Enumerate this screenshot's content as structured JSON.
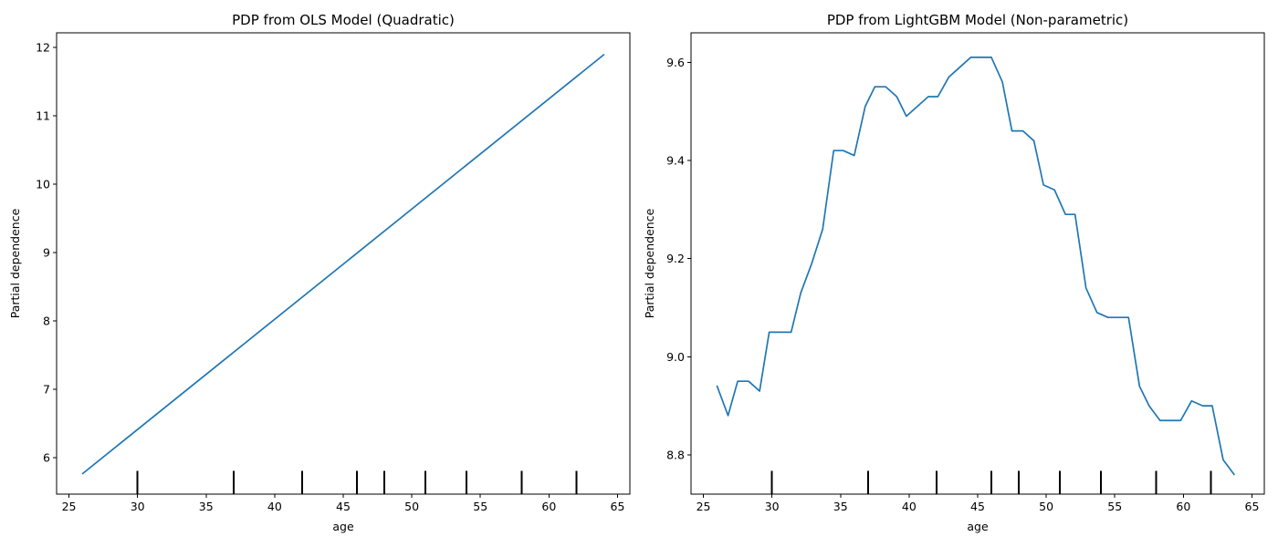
{
  "colors": {
    "line": "#1f77b4",
    "rug": "#000000",
    "axis": "#000000"
  },
  "chart_data": [
    {
      "type": "line",
      "title": "PDP from OLS Model (Quadratic)",
      "xlabel": "age",
      "ylabel": "Partial dependence",
      "xlim": [
        24.1,
        65.9
      ],
      "ylim": [
        5.47,
        12.21
      ],
      "xticks": [
        25,
        30,
        35,
        40,
        45,
        50,
        55,
        60,
        65
      ],
      "yticks": [
        6,
        7,
        8,
        9,
        10,
        11,
        12
      ],
      "xtick_labels": [
        "25",
        "30",
        "35",
        "40",
        "45",
        "50",
        "55",
        "60",
        "65"
      ],
      "ytick_labels": [
        "6",
        "7",
        "8",
        "9",
        "10",
        "11",
        "12"
      ],
      "grid": false,
      "rug_deciles": [
        30,
        37,
        42,
        46,
        48,
        51,
        54,
        58,
        62
      ],
      "series": [
        {
          "x": [
            26,
            64
          ],
          "y": [
            5.77,
            11.89
          ]
        }
      ]
    },
    {
      "type": "line",
      "title": "PDP from LightGBM Model (Non-parametric)",
      "xlabel": "age",
      "ylabel": "Partial dependence",
      "xlim": [
        24.1,
        65.9
      ],
      "ylim": [
        8.72,
        9.66
      ],
      "xticks": [
        25,
        30,
        35,
        40,
        45,
        50,
        55,
        60,
        65
      ],
      "yticks": [
        8.8,
        9.0,
        9.2,
        9.4,
        9.6
      ],
      "xtick_labels": [
        "25",
        "30",
        "35",
        "40",
        "45",
        "50",
        "55",
        "60",
        "65"
      ],
      "ytick_labels": [
        "8.8",
        "9.0",
        "9.2",
        "9.4",
        "9.6"
      ],
      "grid": false,
      "rug_deciles": [
        30,
        37,
        42,
        46,
        48,
        51,
        54,
        58,
        62
      ],
      "series": [
        {
          "x": [
            26.0,
            26.8,
            27.5,
            28.3,
            29.1,
            29.8,
            30.6,
            31.4,
            32.1,
            32.9,
            33.7,
            34.5,
            35.2,
            36.0,
            36.8,
            37.5,
            38.3,
            39.1,
            39.8,
            40.6,
            41.4,
            42.1,
            42.9,
            43.7,
            44.5,
            45.2,
            46.0,
            46.8,
            47.5,
            48.3,
            49.1,
            49.8,
            50.6,
            51.4,
            52.1,
            52.9,
            53.7,
            54.5,
            55.2,
            56.0,
            56.8,
            57.5,
            58.3,
            59.1,
            59.8,
            60.6,
            61.4,
            62.1,
            62.9,
            63.7
          ],
          "y": [
            8.94,
            8.88,
            8.95,
            8.95,
            8.93,
            9.05,
            9.05,
            9.05,
            9.13,
            9.19,
            9.26,
            9.42,
            9.42,
            9.41,
            9.51,
            9.55,
            9.55,
            9.53,
            9.49,
            9.51,
            9.53,
            9.53,
            9.57,
            9.59,
            9.61,
            9.61,
            9.61,
            9.56,
            9.46,
            9.46,
            9.44,
            9.35,
            9.34,
            9.29,
            9.29,
            9.14,
            9.09,
            9.08,
            9.08,
            9.08,
            8.94,
            8.9,
            8.87,
            8.87,
            8.87,
            8.91,
            8.9,
            8.9,
            8.79,
            8.76
          ]
        }
      ]
    }
  ]
}
